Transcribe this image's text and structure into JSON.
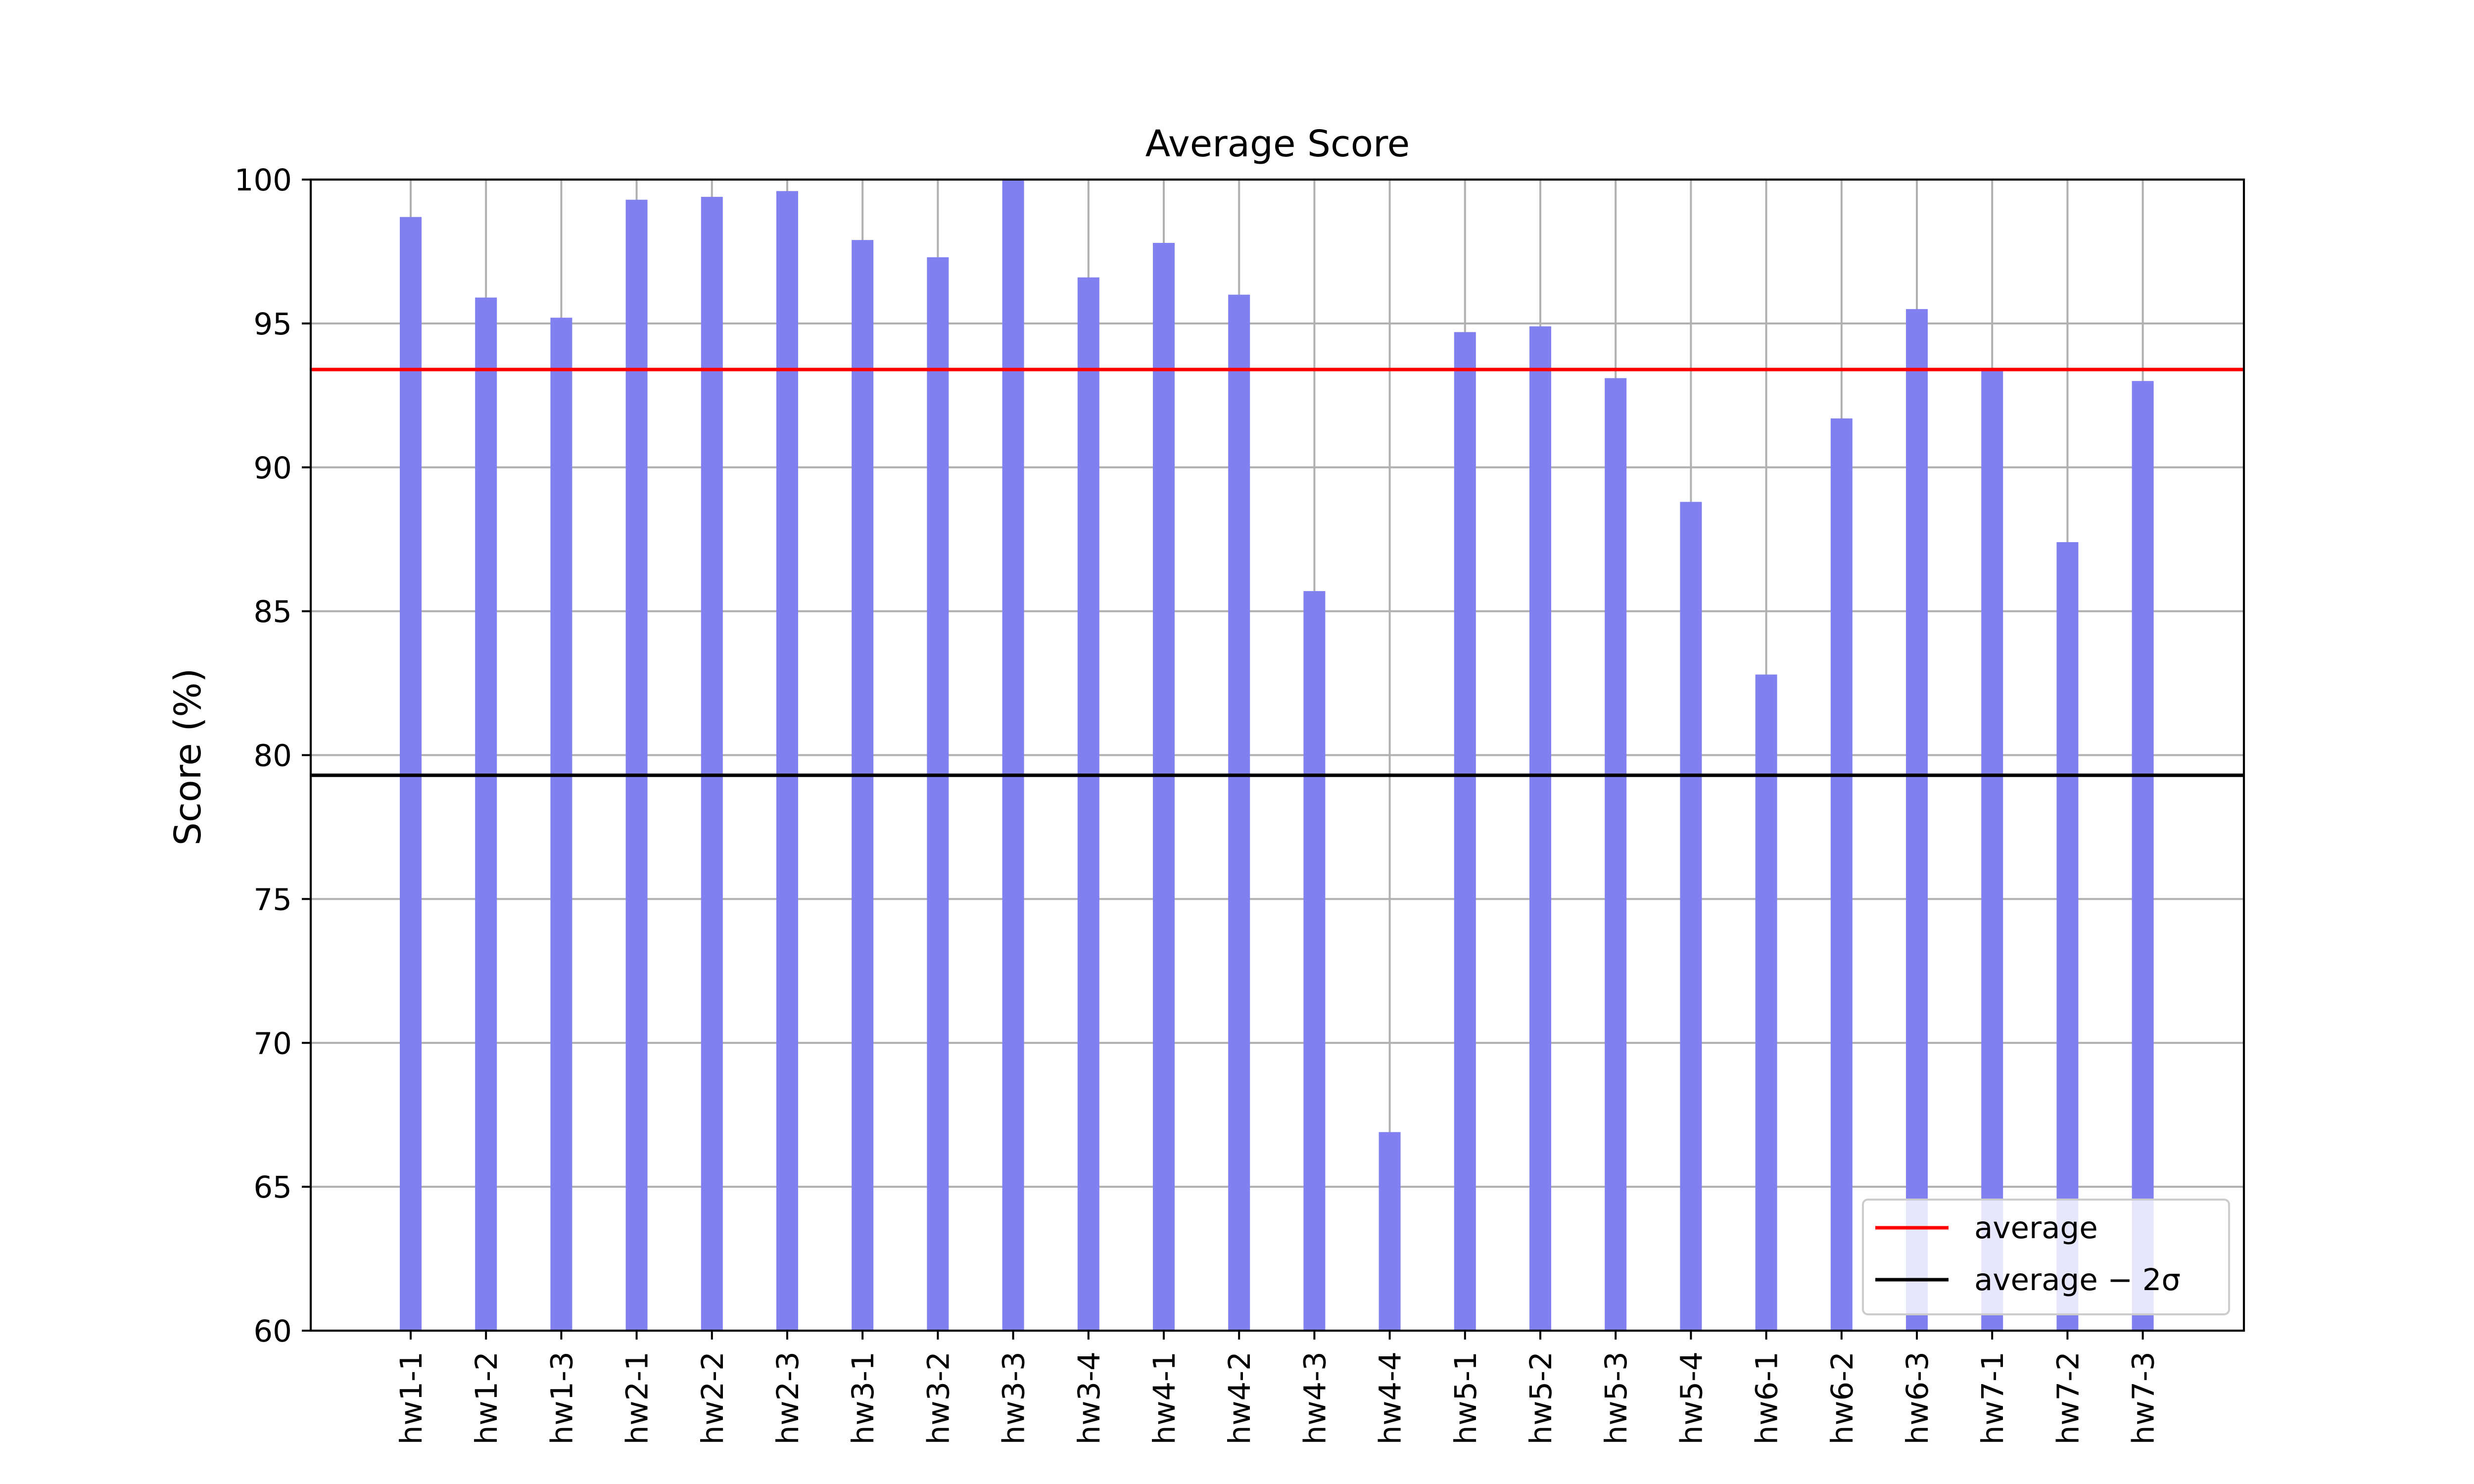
{
  "chart_data": {
    "type": "bar",
    "title": "Average Score",
    "xlabel": "",
    "ylabel": "Score (%)",
    "ylim": [
      60,
      100
    ],
    "yticks": [
      60,
      65,
      70,
      75,
      80,
      85,
      90,
      95,
      100
    ],
    "grid": true,
    "categories": [
      "hw1-1",
      "hw1-2",
      "hw1-3",
      "hw2-1",
      "hw2-2",
      "hw2-3",
      "hw3-1",
      "hw3-2",
      "hw3-3",
      "hw3-4",
      "hw4-1",
      "hw4-2",
      "hw4-3",
      "hw4-4",
      "hw5-1",
      "hw5-2",
      "hw5-3",
      "hw5-4",
      "hw6-1",
      "hw6-2",
      "hw6-3",
      "hw7-1",
      "hw7-2",
      "hw7-3"
    ],
    "values": [
      98.7,
      95.9,
      95.2,
      99.3,
      99.4,
      99.6,
      97.9,
      97.3,
      100.0,
      96.6,
      97.8,
      96.0,
      85.7,
      66.9,
      94.7,
      94.9,
      93.1,
      88.8,
      82.8,
      91.7,
      95.5,
      93.4,
      87.4,
      93.0
    ],
    "bar_color": "#8080f0",
    "reference_lines": [
      {
        "name": "average",
        "value": 93.4,
        "color": "#ff0000"
      },
      {
        "name": "average − 2σ",
        "value": 79.3,
        "color": "#000000"
      }
    ],
    "legend": {
      "placement": "lower-right",
      "entries": [
        {
          "label": "average",
          "color": "#ff0000"
        },
        {
          "label": "average − 2σ",
          "color": "#000000"
        }
      ]
    }
  }
}
